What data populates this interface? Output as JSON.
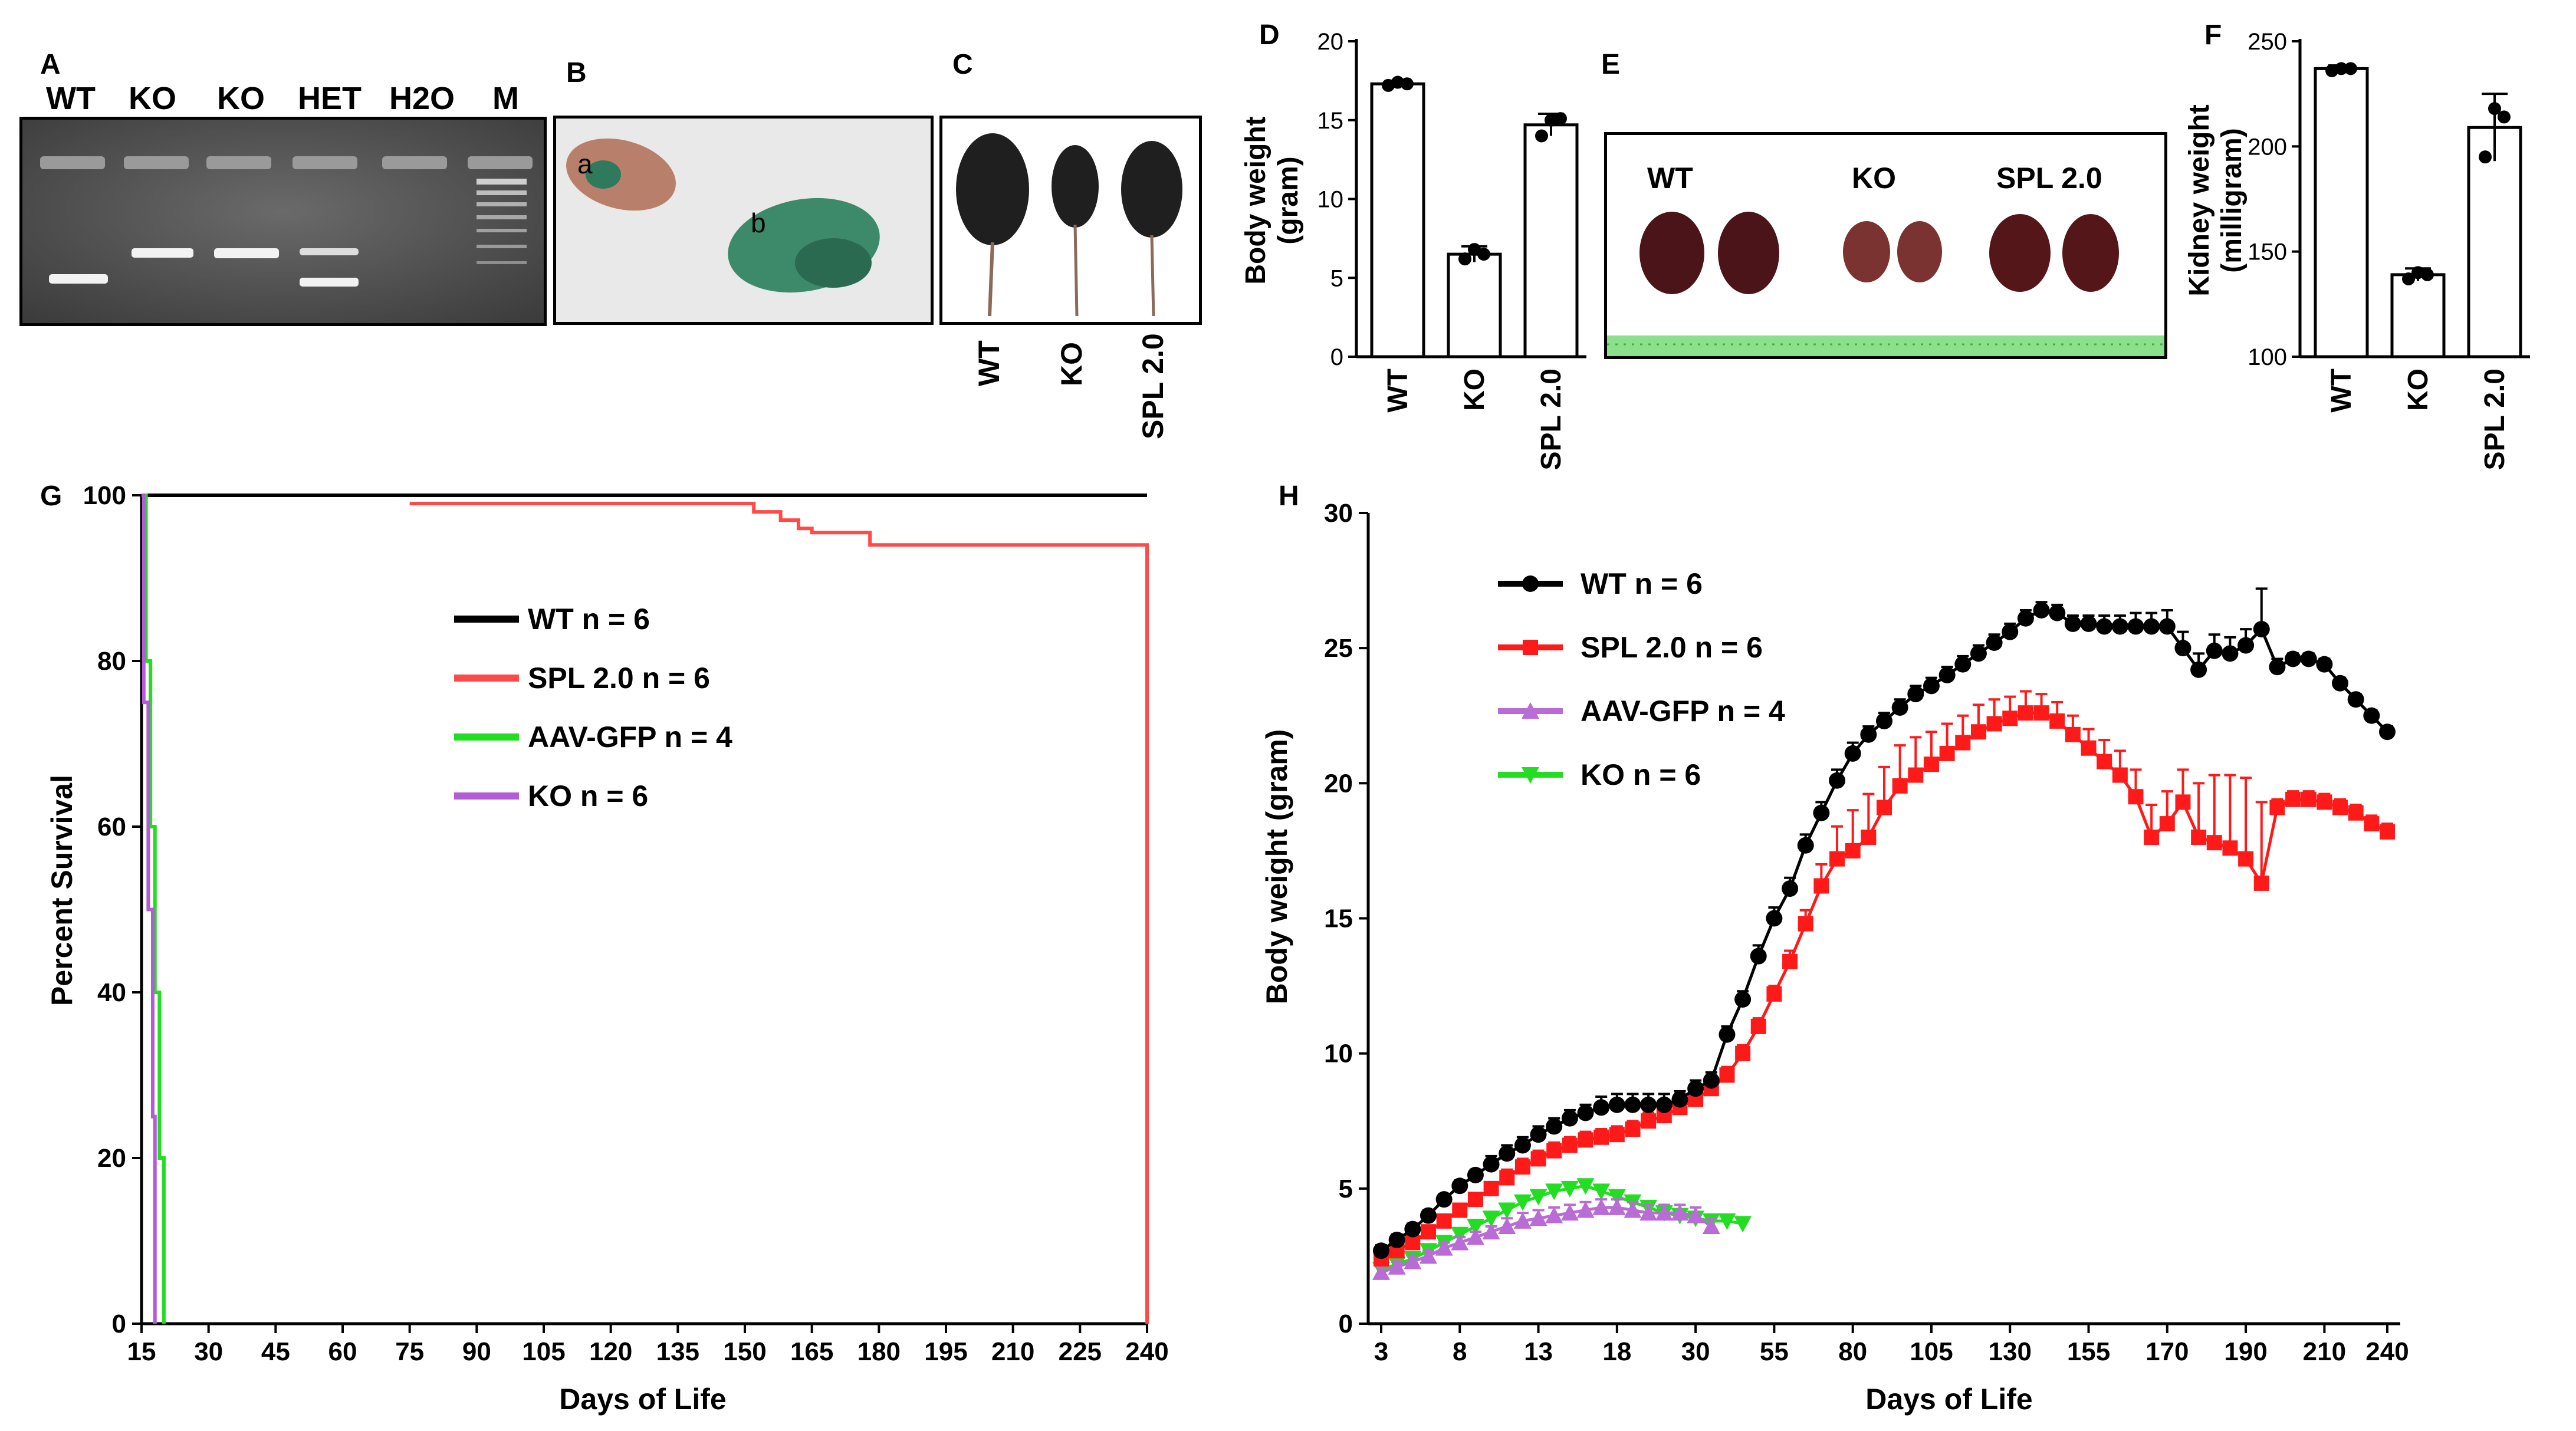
{
  "panels": {
    "A": {
      "label": "A",
      "lanes": [
        "WT",
        "KO",
        "KO",
        "HET",
        "H2O",
        "M"
      ]
    },
    "B": {
      "label": "B",
      "mouse_a": "a",
      "mouse_b": "b"
    },
    "C": {
      "label": "C",
      "categories": [
        "WT",
        "KO",
        "SPL 2.0"
      ]
    },
    "D": {
      "label": "D"
    },
    "E": {
      "label": "E",
      "groups": [
        "WT",
        "KO",
        "SPL 2.0"
      ]
    },
    "F": {
      "label": "F"
    },
    "G": {
      "label": "G"
    },
    "H": {
      "label": "H"
    }
  },
  "chart_data": [
    {
      "id": "D",
      "type": "bar",
      "title": "",
      "ylabel_line1": "Body weight",
      "ylabel_line2": "(gram)",
      "categories": [
        "WT",
        "KO",
        "SPL 2.0"
      ],
      "values": [
        17.3,
        6.5,
        14.7
      ],
      "errors": [
        0.2,
        0.5,
        0.7
      ],
      "points": [
        [
          17.2,
          17.4,
          17.3
        ],
        [
          6.2,
          6.8,
          6.5
        ],
        [
          14.0,
          15.0,
          15.1
        ]
      ],
      "ylim": [
        0,
        20
      ],
      "yticks": [
        "0",
        "5",
        "10",
        "15",
        "20"
      ]
    },
    {
      "id": "F",
      "type": "bar",
      "title": "",
      "ylabel_line1": "Kidney weight",
      "ylabel_line2": "(milligram)",
      "categories": [
        "WT",
        "KO",
        "SPL 2.0"
      ],
      "values": [
        237,
        139,
        209
      ],
      "errors": [
        1.5,
        3,
        16
      ],
      "points": [
        [
          236,
          237,
          237
        ],
        [
          137,
          140,
          139
        ],
        [
          195,
          218,
          214
        ]
      ],
      "ylim": [
        100,
        250
      ],
      "yticks": [
        "100",
        "150",
        "200",
        "250"
      ]
    },
    {
      "id": "G",
      "type": "line",
      "xlabel": "Days of Life",
      "ylabel": "Percent Survival",
      "xticks": [
        "15",
        "30",
        "45",
        "60",
        "75",
        "90",
        "105",
        "120",
        "135",
        "150",
        "165",
        "180",
        "195",
        "210",
        "225",
        "240"
      ],
      "yticks": [
        "0",
        "20",
        "40",
        "60",
        "80",
        "100"
      ],
      "xlim": [
        15,
        240
      ],
      "ylim": [
        0,
        100
      ],
      "series": [
        {
          "name": "WT n = 6",
          "color": "#000000",
          "steps": [
            [
              15,
              100
            ],
            [
              240,
              100
            ]
          ]
        },
        {
          "name": "SPL 2.0 n = 6",
          "color": "#ff4a4a",
          "steps": [
            [
              75,
              99
            ],
            [
              152,
              99
            ],
            [
              152,
              98
            ],
            [
              158,
              98
            ],
            [
              158,
              97
            ],
            [
              162,
              97
            ],
            [
              162,
              96
            ],
            [
              165,
              96
            ],
            [
              165,
              95.5
            ],
            [
              178,
              95.5
            ],
            [
              178,
              94
            ],
            [
              240,
              94
            ],
            [
              240,
              0
            ]
          ]
        },
        {
          "name": "AAV-GFP n = 4",
          "color": "#22dd22",
          "steps": [
            [
              15,
              100
            ],
            [
              16,
              100
            ],
            [
              16,
              80
            ],
            [
              17,
              80
            ],
            [
              17,
              60
            ],
            [
              18,
              60
            ],
            [
              18,
              40
            ],
            [
              19,
              40
            ],
            [
              19,
              20
            ],
            [
              20,
              20
            ],
            [
              20,
              0
            ]
          ]
        },
        {
          "name": "KO n = 6",
          "color": "#b45cd6",
          "steps": [
            [
              15,
              100
            ],
            [
              15.5,
              100
            ],
            [
              15.5,
              75
            ],
            [
              16.5,
              75
            ],
            [
              16.5,
              50
            ],
            [
              17.5,
              50
            ],
            [
              17.5,
              25
            ],
            [
              18,
              25
            ],
            [
              18,
              0
            ]
          ]
        }
      ]
    },
    {
      "id": "H",
      "type": "line",
      "xlabel": "Days of Life",
      "ylabel": "Body weight (gram)",
      "xticks": [
        "3",
        "8",
        "13",
        "18",
        "30",
        "55",
        "80",
        "105",
        "130",
        "155",
        "170",
        "190",
        "210",
        "240"
      ],
      "yticks": [
        "0",
        "5",
        "10",
        "15",
        "20",
        "25",
        "30"
      ],
      "ylim": [
        0,
        30
      ],
      "series": [
        {
          "name": "WT n = 6",
          "color": "#000000",
          "marker": "circle",
          "values": [
            2.7,
            3.1,
            3.5,
            4.0,
            4.6,
            5.1,
            5.5,
            5.9,
            6.3,
            6.6,
            7.0,
            7.3,
            7.6,
            7.8,
            8.0,
            8.1,
            8.1,
            8.1,
            8.1,
            8.3,
            8.7,
            9.0,
            10.7,
            12.0,
            13.6,
            15.0,
            16.1,
            17.7,
            18.9,
            20.1,
            21.1,
            21.8,
            22.3,
            22.8,
            23.3,
            23.6,
            24.0,
            24.4,
            24.8,
            25.2,
            25.6,
            26.1,
            26.4,
            26.3,
            25.9,
            25.9,
            25.8,
            25.8,
            25.8,
            25.8,
            25.8,
            25.0,
            24.2,
            24.9,
            24.8,
            25.1,
            25.7,
            24.3,
            24.6,
            24.6,
            24.4,
            23.7,
            23.1,
            22.5,
            21.9
          ],
          "errors": [
            0.2,
            0.2,
            0.2,
            0.2,
            0.2,
            0.2,
            0.2,
            0.3,
            0.3,
            0.3,
            0.3,
            0.3,
            0.3,
            0.3,
            0.4,
            0.4,
            0.4,
            0.4,
            0.4,
            0.3,
            0.3,
            0.3,
            0.3,
            0.3,
            0.4,
            0.4,
            0.4,
            0.4,
            0.4,
            0.4,
            0.4,
            0.3,
            0.3,
            0.3,
            0.3,
            0.3,
            0.3,
            0.3,
            0.3,
            0.3,
            0.3,
            0.3,
            0.3,
            0.3,
            0.3,
            0.3,
            0.4,
            0.4,
            0.5,
            0.5,
            0.6,
            0.6,
            0.6,
            0.6,
            0.6,
            0.6,
            1.5,
            0.3,
            0.2,
            0.2,
            0.2,
            0.2,
            0.2,
            0.2,
            0.2
          ]
        },
        {
          "name": "SPL 2.0 n = 6",
          "color": "#ff1a1a",
          "marker": "square",
          "values": [
            2.4,
            2.7,
            3.0,
            3.4,
            3.8,
            4.2,
            4.6,
            5.0,
            5.4,
            5.8,
            6.1,
            6.4,
            6.6,
            6.8,
            6.9,
            7.0,
            7.2,
            7.5,
            7.7,
            8.0,
            8.3,
            8.7,
            9.2,
            10.0,
            11.0,
            12.2,
            13.4,
            14.8,
            16.2,
            17.2,
            17.5,
            18.0,
            19.1,
            19.9,
            20.3,
            20.7,
            21.1,
            21.5,
            21.9,
            22.2,
            22.4,
            22.6,
            22.6,
            22.3,
            21.8,
            21.3,
            20.8,
            20.3,
            19.5,
            18.0,
            18.5,
            19.3,
            18.0,
            17.8,
            17.6,
            17.2,
            16.3,
            19.1,
            19.4,
            19.4,
            19.3,
            19.1,
            18.9,
            18.5,
            18.2
          ],
          "errors": [
            0.2,
            0.2,
            0.2,
            0.2,
            0.2,
            0.2,
            0.2,
            0.2,
            0.3,
            0.3,
            0.3,
            0.3,
            0.3,
            0.3,
            0.3,
            0.3,
            0.3,
            0.3,
            0.3,
            0.3,
            0.3,
            0.3,
            0.3,
            0.3,
            0.3,
            0.3,
            0.4,
            0.5,
            0.8,
            1.2,
            1.5,
            1.6,
            1.5,
            1.5,
            1.4,
            1.2,
            1.1,
            1.0,
            1.0,
            0.9,
            0.8,
            0.8,
            0.7,
            0.7,
            0.7,
            0.7,
            0.8,
            0.9,
            1.0,
            1.2,
            1.2,
            1.2,
            2.0,
            2.5,
            2.7,
            3.0,
            3.0,
            0.3,
            0.3,
            0.3,
            0.3,
            0.3,
            0.3,
            0.3,
            0.3
          ]
        },
        {
          "name": "AAV-GFP n = 4",
          "color": "#b96bd6",
          "marker": "triangle-up",
          "values": [
            1.9,
            2.1,
            2.3,
            2.5,
            2.8,
            3.0,
            3.2,
            3.4,
            3.6,
            3.8,
            3.9,
            4.0,
            4.1,
            4.2,
            4.3,
            4.3,
            4.2,
            4.1,
            4.1,
            4.1,
            4.0,
            3.6
          ],
          "errors": [
            0.2,
            0.2,
            0.2,
            0.2,
            0.2,
            0.2,
            0.2,
            0.2,
            0.3,
            0.3,
            0.3,
            0.3,
            0.3,
            0.3,
            0.3,
            0.3,
            0.3,
            0.3,
            0.3,
            0.3,
            0.3,
            0.3
          ]
        },
        {
          "name": "KO n = 6",
          "color": "#22dd22",
          "marker": "triangle-down",
          "values": [
            2.0,
            2.2,
            2.4,
            2.7,
            3.0,
            3.3,
            3.6,
            3.9,
            4.2,
            4.5,
            4.7,
            4.9,
            5.0,
            5.1,
            4.9,
            4.7,
            4.5,
            4.3,
            4.1,
            4.0,
            3.9,
            3.8,
            3.8,
            3.7
          ],
          "errors": [
            0.2,
            0.2,
            0.2,
            0.2,
            0.2,
            0.2,
            0.2,
            0.2,
            0.2,
            0.2,
            0.2,
            0.2,
            0.2,
            0.2,
            0.2,
            0.2,
            0.2,
            0.2,
            0.2,
            0.2,
            0.2,
            0.2,
            0.2,
            0.2
          ]
        }
      ]
    }
  ]
}
